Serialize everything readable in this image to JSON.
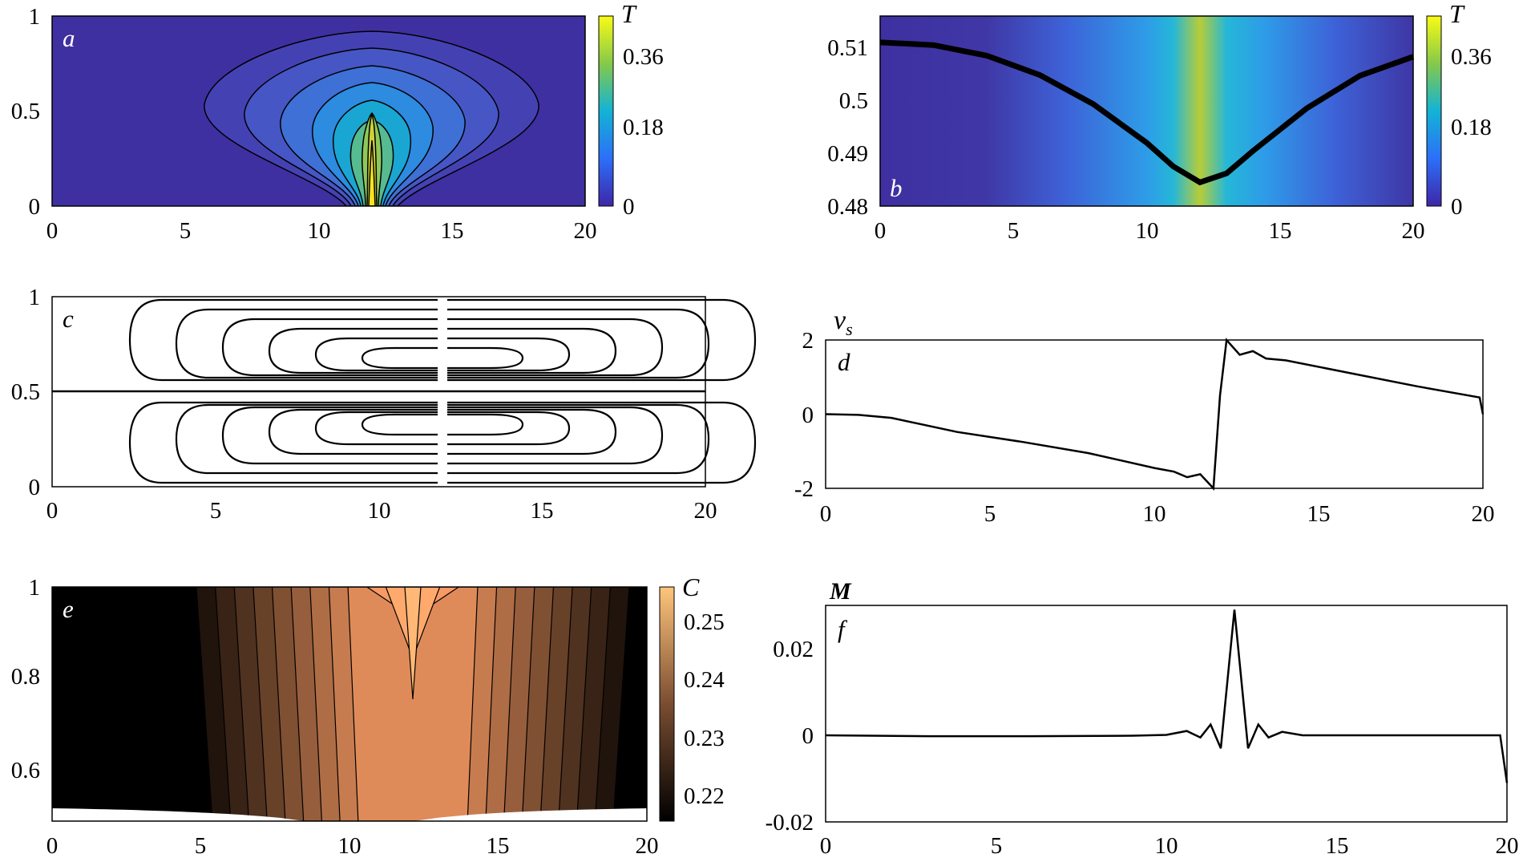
{
  "chart_data": [
    {
      "panel": "a",
      "type": "heatmap",
      "title": "",
      "xlabel": "",
      "ylabel": "",
      "xlim": [
        0,
        20
      ],
      "ylim": [
        0,
        1
      ],
      "xticks": [
        "0",
        "5",
        "10",
        "15",
        "20"
      ],
      "yticks": [
        "0",
        "0.5",
        "1"
      ],
      "colorbar": {
        "title": "T",
        "range": [
          0,
          0.43
        ],
        "ticks": [
          "0",
          "0.18",
          "0.36"
        ]
      },
      "source_x": 12,
      "source_halfwidth": 1,
      "contours": 9
    },
    {
      "panel": "b",
      "type": "line",
      "xlim": [
        0,
        20
      ],
      "ylim": [
        0.48,
        0.516
      ],
      "xticks": [
        "0",
        "5",
        "10",
        "15",
        "20"
      ],
      "yticks": [
        "0.48",
        "0.49",
        "0.5",
        "0.51"
      ],
      "colorbar": {
        "title": "T",
        "range": [
          0,
          0.43
        ],
        "ticks": [
          "0",
          "0.18",
          "0.36"
        ]
      },
      "x": [
        0,
        2,
        4,
        6,
        8,
        10,
        11,
        12,
        13,
        14,
        16,
        18,
        20
      ],
      "y": [
        0.511,
        0.5105,
        0.5085,
        0.5048,
        0.4993,
        0.492,
        0.4875,
        0.4845,
        0.4862,
        0.4905,
        0.4985,
        0.5047,
        0.5083
      ]
    },
    {
      "panel": "c",
      "type": "line",
      "xlim": [
        0,
        20
      ],
      "ylim": [
        0,
        1
      ],
      "xticks": [
        "0",
        "5",
        "10",
        "15",
        "20"
      ],
      "yticks": [
        "0",
        "0.5",
        "1"
      ],
      "streamlines": 6
    },
    {
      "panel": "d",
      "type": "line",
      "label": "v",
      "label_sub": "s",
      "xlim": [
        0,
        20
      ],
      "ylim": [
        -2,
        2
      ],
      "xticks": [
        "0",
        "5",
        "10",
        "15",
        "20"
      ],
      "yticks": [
        "-2",
        "0",
        "2"
      ],
      "x": [
        0,
        1,
        2,
        4,
        6,
        8,
        10,
        10.6,
        11,
        11.4,
        11.8,
        12,
        12.2,
        12.6,
        13,
        13.4,
        14,
        16,
        18,
        19.9,
        20
      ],
      "y": [
        0,
        -0.02,
        -0.1,
        -0.48,
        -0.75,
        -1.05,
        -1.45,
        -1.55,
        -1.7,
        -1.62,
        -2.0,
        0.5,
        2.0,
        1.6,
        1.7,
        1.5,
        1.45,
        1.1,
        0.75,
        0.45,
        0
      ]
    },
    {
      "panel": "e",
      "type": "heatmap",
      "xlim": [
        0,
        20
      ],
      "ylim": [
        0.5,
        1
      ],
      "xticks": [
        "0",
        "5",
        "10",
        "15",
        "20"
      ],
      "yticks": [
        "0.6",
        "0.8",
        "1"
      ],
      "colorbar": {
        "title": "C",
        "range": [
          0.215,
          0.255
        ],
        "ticks": [
          "0.22",
          "0.23",
          "0.24",
          "0.25"
        ]
      },
      "levels": [
        0.219,
        0.222,
        0.225,
        0.228,
        0.231,
        0.234,
        0.237,
        0.24,
        0.243,
        0.246,
        0.249,
        0.252
      ]
    },
    {
      "panel": "f",
      "type": "line",
      "label": "M",
      "xlim": [
        0,
        20
      ],
      "ylim": [
        -0.02,
        0.03
      ],
      "xticks": [
        "0",
        "5",
        "10",
        "15",
        "20"
      ],
      "yticks": [
        "-0.02",
        "0",
        "0.02"
      ],
      "x": [
        0,
        3,
        6,
        9,
        10,
        10.6,
        11,
        11.3,
        11.6,
        12,
        12.4,
        12.7,
        13,
        13.4,
        14,
        16,
        18,
        19.8,
        20
      ],
      "y": [
        0,
        -0.0002,
        -0.0002,
        -0.0001,
        0.0001,
        0.001,
        -0.0005,
        0.0025,
        -0.003,
        0.029,
        -0.003,
        0.0025,
        -0.0005,
        0.0008,
        0,
        0,
        0,
        0,
        -0.011
      ]
    }
  ]
}
